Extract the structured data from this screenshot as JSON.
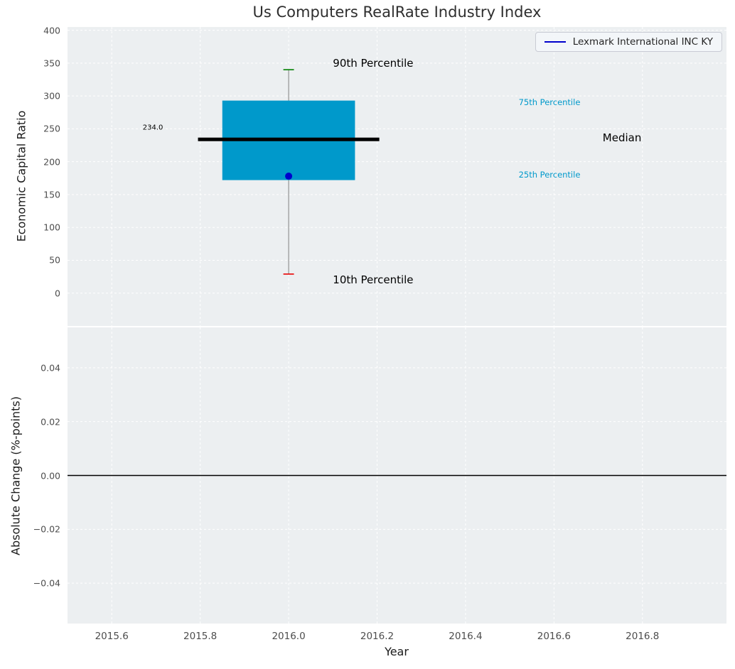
{
  "title": "Us Computers RealRate Industry Index",
  "xlabel": "Year",
  "legend": {
    "label": "Lexmark International INC KY",
    "line_color": "#0000CC"
  },
  "x_axis": {
    "xlim": [
      2015.5,
      2016.99
    ],
    "ticks": [
      {
        "v": 2015.6,
        "label": "2015.6"
      },
      {
        "v": 2015.8,
        "label": "2015.8"
      },
      {
        "v": 2016.0,
        "label": "2016.0"
      },
      {
        "v": 2016.2,
        "label": "2016.2"
      },
      {
        "v": 2016.4,
        "label": "2016.4"
      },
      {
        "v": 2016.6,
        "label": "2016.6"
      },
      {
        "v": 2016.8,
        "label": "2016.8"
      }
    ]
  },
  "chart_data": [
    {
      "type": "box",
      "name": "economic-capital-ratio-boxplot",
      "title": "Us Computers RealRate Industry Index",
      "ylabel": "Economic Capital Ratio",
      "ylim": [
        -50,
        405
      ],
      "yticks": [
        {
          "v": 400,
          "label": "400"
        },
        {
          "v": 350,
          "label": "350"
        },
        {
          "v": 300,
          "label": "300"
        },
        {
          "v": 250,
          "label": "250"
        },
        {
          "v": 200,
          "label": "200"
        },
        {
          "v": 150,
          "label": "150"
        },
        {
          "v": 100,
          "label": "100"
        },
        {
          "v": 50,
          "label": "50"
        },
        {
          "v": 0,
          "label": "0"
        }
      ],
      "x_center": 2016.0,
      "box": {
        "p10": 29,
        "p25": 172,
        "median": 234.0,
        "p75": 293,
        "p90": 340,
        "box_halfwidth": 0.15,
        "median_halfwidth": 0.205,
        "cap_halfwidth": 0.012
      },
      "company_point": {
        "name": "Lexmark International INC KY",
        "x": 2016.0,
        "value": 178
      },
      "colors": {
        "box_fill": "#0099CB",
        "median": "#000000",
        "whisker": "#808080",
        "p90_cap": "#008000",
        "p10_cap": "#E80000"
      },
      "annotations": [
        {
          "text": "234.0",
          "x": 2015.67,
          "y": 252,
          "color": "#000000",
          "size": 10
        },
        {
          "text": "90th Percentile",
          "x": 2016.1,
          "y": 350,
          "color": "#000000",
          "size": 15
        },
        {
          "text": "10th Percentile",
          "x": 2016.1,
          "y": 20,
          "color": "#000000",
          "size": 15
        },
        {
          "text": "75th Percentile",
          "x": 2016.52,
          "y": 290,
          "color": "#0099CB",
          "size": 11.5
        },
        {
          "text": "25th Percentile",
          "x": 2016.52,
          "y": 180,
          "color": "#0099CB",
          "size": 11.5
        },
        {
          "text": "Median",
          "x": 2016.71,
          "y": 236,
          "color": "#000000",
          "size": 15
        }
      ]
    },
    {
      "type": "line",
      "name": "absolute-change",
      "ylabel": "Absolute Change (%-points)",
      "ylim": [
        -0.055,
        0.055
      ],
      "yticks": [
        {
          "v": 0.04,
          "label": "0.04"
        },
        {
          "v": 0.02,
          "label": "0.02"
        },
        {
          "v": 0.0,
          "label": "0.00"
        },
        {
          "v": -0.02,
          "label": "−0.02"
        },
        {
          "v": -0.04,
          "label": "−0.04"
        }
      ],
      "zero_line": {
        "v": 0.0,
        "color": "#000000"
      },
      "series": []
    }
  ]
}
